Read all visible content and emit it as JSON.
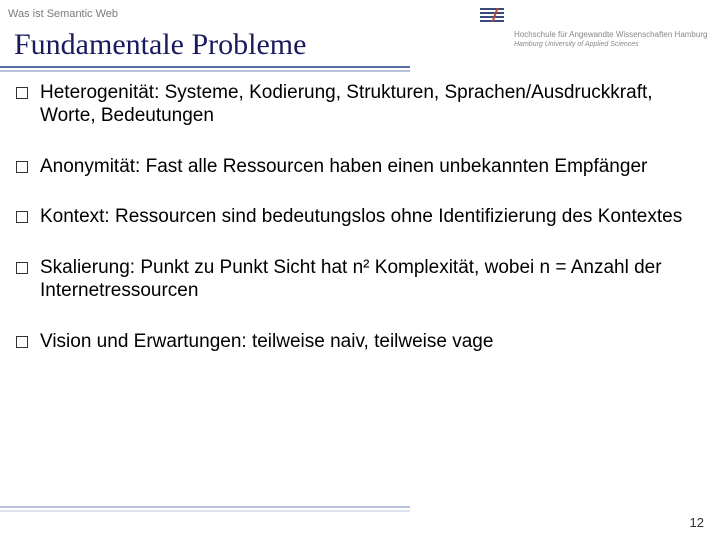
{
  "breadcrumb": "Was ist Semantic Web",
  "title": "Fundamentale Probleme",
  "logo": {
    "line1": "Hochschule für Angewandte Wissenschaften Hamburg",
    "line2": "Hamburg University of Applied Sciences"
  },
  "items": [
    "Heterogenität: Systeme, Kodierung, Strukturen, Sprachen/Ausdruckkraft, Worte, Bedeutungen",
    "Anonymität: Fast alle Ressourcen haben einen unbekannten Empfänger",
    "Kontext: Ressourcen sind bedeutungslos ohne Identifizierung des Kontextes",
    "Skalierung: Punkt zu Punkt Sicht hat n² Komplexität, wobei n = Anzahl der Internetressourcen",
    "Vision und Erwartungen: teilweise naiv, teilweise vage"
  ],
  "pageNumber": "12",
  "colors": {
    "titleColor": "#1a1a5e",
    "underlineDark": "#5a6ea8",
    "underlineLight": "#b8c2dc",
    "breadcrumbColor": "#7a7a7a"
  }
}
